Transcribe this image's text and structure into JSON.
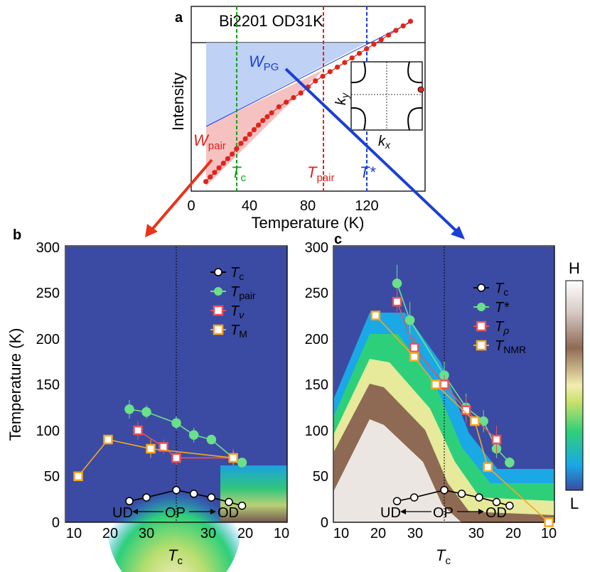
{
  "panel_labels": {
    "a": "a",
    "b": "b",
    "c": "c"
  },
  "colors": {
    "tc": "#000000",
    "tpair": "#6be08a",
    "tnu": "#e8525a",
    "tm": "#f5a623",
    "tstar": "#6be08a",
    "tpg_line": "#1a3fd6",
    "pair_line": "#e0241b",
    "tc_line": "#14a014",
    "bg": "#3b4ba3"
  },
  "panel_a": {
    "title": "Bi2201 OD31K",
    "xlabel": "Temperature (K)",
    "ylabel": "Intensity",
    "x_ticks": [
      "0",
      "40",
      "80",
      "120"
    ],
    "wpg_label": "W",
    "wpg_sub": "PG",
    "wpair_label": "W",
    "wpair_sub": "pair",
    "tc_label": "T",
    "tc_sub": "c",
    "tpair_label": "T",
    "tpair_sub": "pair",
    "tstar_label": "T*",
    "inset_ky": "k",
    "inset_ky_sub": "y",
    "inset_kx": "k",
    "inset_kx_sub": "x"
  },
  "panel_b": {
    "ylabel": "Temperature (K)",
    "xlabel": "T",
    "xlabel_sub": "c",
    "y_ticks": [
      "0",
      "50",
      "100",
      "150",
      "200",
      "250",
      "300"
    ],
    "x_ticks": [
      "10",
      "20",
      "30",
      "30",
      "20",
      "10"
    ],
    "legend": [
      {
        "main": "T",
        "sub": "c"
      },
      {
        "main": "T",
        "sub": "pair"
      },
      {
        "main": "T",
        "sub": "ν"
      },
      {
        "main": "T",
        "sub": "M"
      }
    ],
    "doping": {
      "ud": "UD",
      "op": "OP",
      "od": "OD"
    }
  },
  "panel_c": {
    "xlabel": "T",
    "xlabel_sub": "c",
    "y_ticks": [
      "0",
      "50",
      "100",
      "150",
      "200",
      "250",
      "300"
    ],
    "x_ticks": [
      "10",
      "20",
      "30",
      "30",
      "20",
      "10"
    ],
    "legend": [
      {
        "main": "T",
        "sub": "c"
      },
      {
        "main": "T*",
        "sub": ""
      },
      {
        "main": "T",
        "sub": "ρ"
      },
      {
        "main": "T",
        "sub": "NMR"
      }
    ],
    "doping": {
      "ud": "UD",
      "op": "OP",
      "od": "OD"
    },
    "colorbar": {
      "high": "H",
      "low": "L"
    }
  },
  "chart_data": [
    {
      "type": "scatter",
      "panel": "a",
      "title": "Bi2201 OD31K",
      "xlabel": "Temperature (K)",
      "ylabel": "Intensity",
      "xlim": [
        0,
        160
      ],
      "series": [
        {
          "values_x": [
            10,
            13,
            16,
            19,
            22,
            25,
            28,
            31,
            34,
            37,
            40,
            43,
            46,
            49,
            52,
            55,
            60,
            65,
            70,
            75,
            80,
            85,
            90,
            95,
            100,
            105,
            110,
            115,
            120,
            125,
            130,
            135,
            140,
            145,
            150
          ],
          "values_y": [
            0.03,
            0.06,
            0.09,
            0.12,
            0.15,
            0.18,
            0.21,
            0.245,
            0.28,
            0.31,
            0.34,
            0.37,
            0.4,
            0.43,
            0.455,
            0.48,
            0.52,
            0.55,
            0.58,
            0.61,
            0.65,
            0.69,
            0.72,
            0.75,
            0.78,
            0.81,
            0.84,
            0.87,
            0.9,
            0.93,
            0.96,
            0.99,
            1.02,
            1.05,
            1.08
          ]
        }
      ],
      "markers": {
        "Tc": 31,
        "Tpair": 90,
        "T*": 120
      }
    },
    {
      "type": "line",
      "panel": "b",
      "ylabel": "Temperature (K)",
      "xlabel": "Tc",
      "ylim": [
        0,
        300
      ],
      "series": [
        {
          "name": "Tc",
          "x": [
            -23,
            -27,
            -34,
            -30,
            -26,
            -22,
            -19
          ],
          "y": [
            23,
            27,
            35,
            31,
            27,
            22,
            18
          ]
        },
        {
          "name": "Tpair",
          "x": [
            -23,
            -27,
            -34,
            -30,
            -26,
            -21,
            -19
          ],
          "y": [
            123,
            120,
            108,
            95,
            90,
            70,
            65
          ]
        },
        {
          "name": "Tν",
          "x": [
            -25,
            -31,
            -34,
            -21
          ],
          "y": [
            100,
            82,
            70,
            70
          ]
        },
        {
          "name": "TM",
          "x": [
            -11,
            -18,
            -28,
            -21
          ],
          "y": [
            50,
            90,
            80,
            70
          ]
        }
      ]
    },
    {
      "type": "line",
      "panel": "c",
      "xlabel": "Tc",
      "ylim": [
        0,
        300
      ],
      "series": [
        {
          "name": "Tc",
          "x": [
            -23,
            -27,
            -34,
            -30,
            -26,
            -22,
            -19
          ],
          "y": [
            23,
            27,
            35,
            31,
            27,
            22,
            18
          ]
        },
        {
          "name": "T*",
          "x": [
            -23,
            -26,
            -34,
            -29,
            -25,
            -22,
            -19
          ],
          "y": [
            260,
            220,
            160,
            125,
            110,
            80,
            65
          ]
        },
        {
          "name": "Tρ",
          "x": [
            -23,
            -27,
            -34,
            -29,
            -22
          ],
          "y": [
            240,
            190,
            150,
            122,
            90
          ]
        },
        {
          "name": "TNMR",
          "x": [
            -18,
            -27,
            -32,
            -27,
            -24,
            -10
          ],
          "y": [
            225,
            180,
            150,
            110,
            60,
            0
          ]
        }
      ]
    }
  ]
}
